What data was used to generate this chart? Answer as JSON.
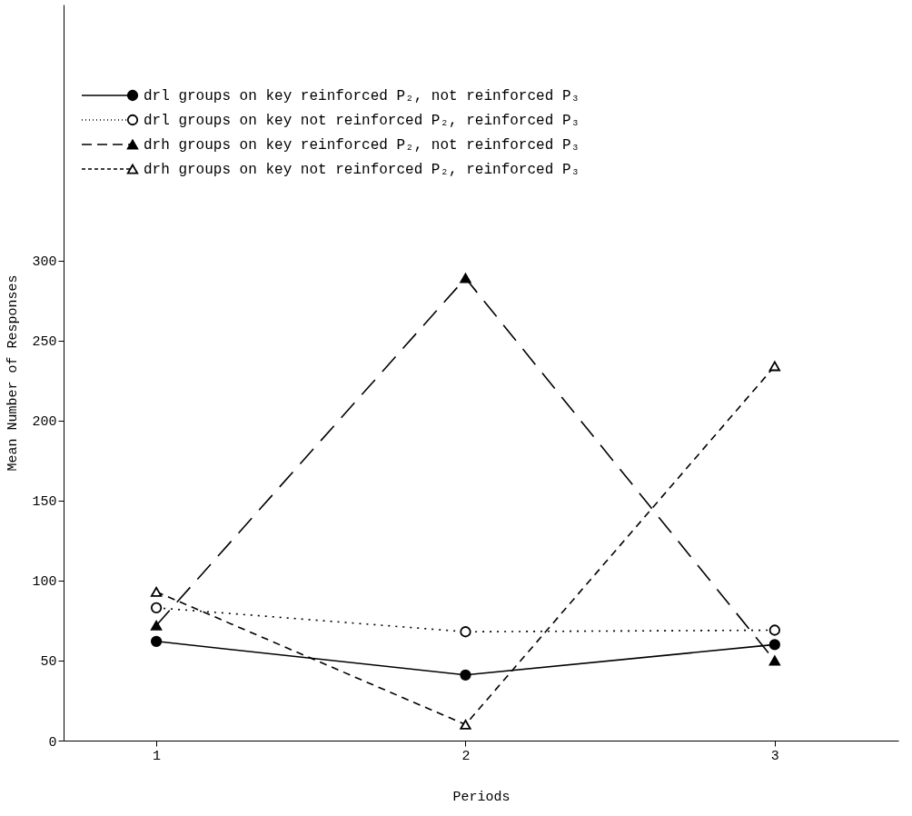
{
  "chart_data": {
    "type": "line",
    "xlabel": "Periods",
    "ylabel": "Mean Number of Responses",
    "x": [
      1,
      2,
      3
    ],
    "xlim": [
      0.7,
      3.4
    ],
    "xticks": [
      1,
      2,
      3
    ],
    "ylim": [
      0,
      460
    ],
    "yticks": [
      0,
      50,
      100,
      150,
      200,
      250,
      300
    ],
    "grid": false,
    "legend": "top left",
    "series": [
      {
        "name": "drl groups on key reinforced P₂, not reinforced P₃",
        "color": "#000000",
        "marker": "circle",
        "line_style": "solid",
        "values": [
          62,
          41,
          60
        ]
      },
      {
        "name": "drl groups on key not reinforced P₂, reinforced P₃",
        "color": "#000000",
        "marker": "circle",
        "line_style": "dotted",
        "values": [
          83,
          68,
          69
        ]
      },
      {
        "name": "drh groups on key reinforced P₂, not reinforced P₃",
        "color": "#000000",
        "marker": "triangle",
        "line_style": "dashed",
        "values": [
          72,
          289,
          50
        ]
      },
      {
        "name": "drh groups on key not reinforced P₂, reinforced P₃",
        "color": "#000000",
        "marker": "triangle",
        "line_style": "dashed",
        "values": [
          93,
          10,
          234
        ]
      }
    ]
  }
}
